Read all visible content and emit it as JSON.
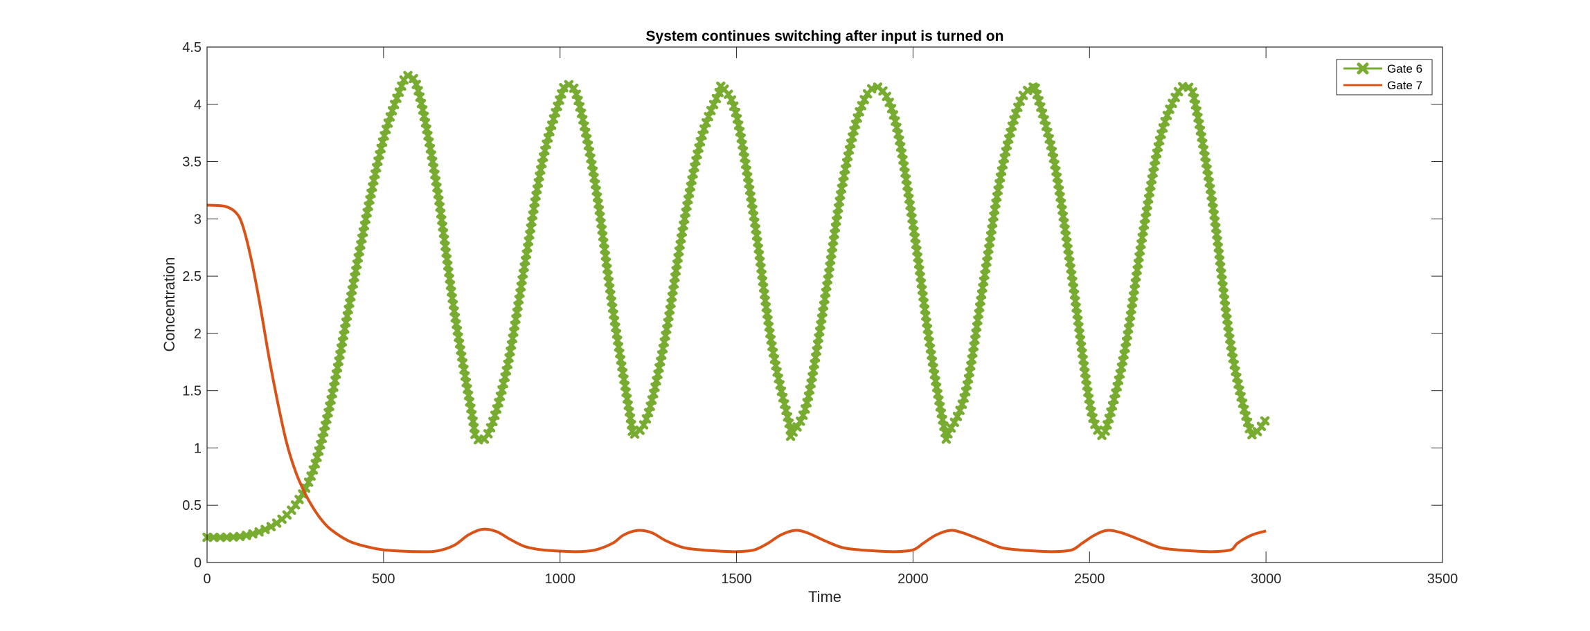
{
  "chart_data": {
    "type": "line",
    "title": "System continues switching after input is turned on",
    "xlabel": "Time",
    "ylabel": "Concentration",
    "xlim": [
      0,
      3500
    ],
    "ylim": [
      0,
      4.5
    ],
    "xticks": [
      0,
      500,
      1000,
      1500,
      2000,
      2500,
      3000,
      3500
    ],
    "xtick_labels": [
      "0",
      "500",
      "1000",
      "1500",
      "2000",
      "2500",
      "3000",
      "3500"
    ],
    "yticks": [
      0,
      0.5,
      1,
      1.5,
      2,
      2.5,
      3,
      3.5,
      4,
      4.5
    ],
    "ytick_labels": [
      "0",
      "0.5",
      "1",
      "1.5",
      "2",
      "2.5",
      "3",
      "3.5",
      "4",
      "4.5"
    ],
    "grid": false,
    "legend_position": "top-right",
    "series": [
      {
        "name": "Gate 6",
        "color": "#77AC30",
        "marker": "filled-x",
        "x": [
          0,
          50,
          100,
          150,
          200,
          250,
          300,
          350,
          400,
          450,
          500,
          550,
          570,
          600,
          650,
          700,
          750,
          765,
          800,
          850,
          900,
          950,
          1000,
          1020,
          1050,
          1100,
          1150,
          1200,
          1210,
          1250,
          1300,
          1350,
          1400,
          1450,
          1460,
          1500,
          1550,
          1600,
          1650,
          1655,
          1700,
          1750,
          1800,
          1850,
          1900,
          1950,
          2000,
          2050,
          2090,
          2100,
          2150,
          2200,
          2250,
          2300,
          2340,
          2350,
          2400,
          2450,
          2500,
          2530,
          2550,
          2600,
          2650,
          2700,
          2750,
          2780,
          2800,
          2850,
          2900,
          2950,
          2970,
          3000
        ],
        "y": [
          0.22,
          0.22,
          0.23,
          0.27,
          0.35,
          0.5,
          0.8,
          1.4,
          2.2,
          3.0,
          3.7,
          4.15,
          4.25,
          4.1,
          3.3,
          2.2,
          1.3,
          1.08,
          1.15,
          1.7,
          2.6,
          3.5,
          4.05,
          4.17,
          4.05,
          3.3,
          2.2,
          1.25,
          1.12,
          1.3,
          2.0,
          2.95,
          3.7,
          4.1,
          4.15,
          3.9,
          3.0,
          1.9,
          1.2,
          1.12,
          1.4,
          2.3,
          3.3,
          3.95,
          4.15,
          3.85,
          2.95,
          1.85,
          1.15,
          1.13,
          1.5,
          2.45,
          3.4,
          4.0,
          4.15,
          4.1,
          3.5,
          2.5,
          1.4,
          1.13,
          1.2,
          1.85,
          2.85,
          3.7,
          4.1,
          4.15,
          4.0,
          3.1,
          1.9,
          1.2,
          1.13,
          1.25
        ]
      },
      {
        "name": "Gate 7",
        "color": "#D95319",
        "marker": "none",
        "x": [
          0,
          50,
          80,
          100,
          125,
          150,
          175,
          200,
          225,
          250,
          275,
          300,
          325,
          350,
          400,
          450,
          500,
          550,
          600,
          650,
          700,
          740,
          780,
          820,
          860,
          900,
          950,
          1000,
          1050,
          1100,
          1150,
          1180,
          1220,
          1260,
          1300,
          1350,
          1400,
          1450,
          1500,
          1550,
          1590,
          1625,
          1665,
          1700,
          1750,
          1800,
          1850,
          1900,
          1950,
          2000,
          2030,
          2065,
          2105,
          2140,
          2200,
          2250,
          2300,
          2350,
          2400,
          2450,
          2480,
          2515,
          2550,
          2590,
          2650,
          2700,
          2750,
          2800,
          2850,
          2900,
          2920,
          2960,
          3000
        ],
        "y": [
          3.12,
          3.11,
          3.06,
          2.95,
          2.65,
          2.25,
          1.8,
          1.4,
          1.05,
          0.8,
          0.62,
          0.48,
          0.37,
          0.29,
          0.19,
          0.14,
          0.11,
          0.1,
          0.095,
          0.1,
          0.15,
          0.24,
          0.29,
          0.27,
          0.2,
          0.14,
          0.11,
          0.1,
          0.095,
          0.11,
          0.17,
          0.24,
          0.28,
          0.26,
          0.19,
          0.13,
          0.11,
          0.1,
          0.095,
          0.11,
          0.17,
          0.24,
          0.28,
          0.26,
          0.19,
          0.13,
          0.11,
          0.1,
          0.095,
          0.11,
          0.17,
          0.24,
          0.28,
          0.26,
          0.19,
          0.13,
          0.11,
          0.1,
          0.095,
          0.11,
          0.17,
          0.24,
          0.28,
          0.26,
          0.19,
          0.13,
          0.11,
          0.1,
          0.095,
          0.11,
          0.17,
          0.24,
          0.275
        ]
      }
    ]
  }
}
